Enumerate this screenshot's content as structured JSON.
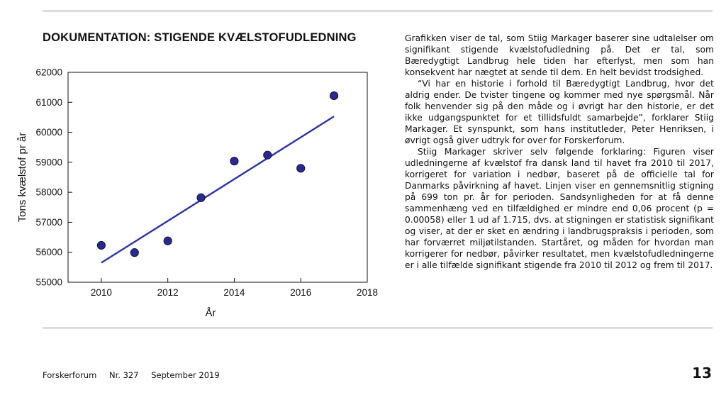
{
  "heading": "DOKUMENTATION: STIGENDE KVÆLSTOFUDLEDNING",
  "article": {
    "paragraphs": [
      "Grafikken viser de tal, som Stiig Markager baserer sine udtalelser om signifikant stigende kvælstofudledning på. Det er tal, som Bæredygtigt Landbrug hele tiden har efterlyst, men som han konsekvent har nægtet at sende til dem. En helt bevidst trodsighed.",
      "“Vi har en historie i forhold til Bæredygtigt Landbrug, hvor det aldrig ender. De tvister tingene og kommer med nye spørgsmål. Når folk henvender sig på den måde og i øvrigt har den historie, er det ikke udgangspunktet for et tillidsfuldt samarbejde”, forklarer Stiig Markager. Et synspunkt, som hans institutleder, Peter Henriksen, i øvrigt også giver udtryk for over for Forskerforum.",
      "Stiig Markager skriver selv følgende forklaring: Figuren viser udledningerne af kvælstof fra dansk land til havet fra 2010 til 2017, korrigeret for variation i nedbør, baseret på de officielle tal for Danmarks påvirkning af havet. Linjen viser en gennemsnitlig stigning på 699 ton pr. år for perioden. Sandsynligheden for at få denne sammenhæng ved en tilfældighed er mindre end 0,06 procent (p = 0.00058) eller 1 ud af 1.715, dvs. at stigningen er statistisk signifikant og viser, at der er sket en ændring i landbrugspraksis i perioden, som har forværret miljøtilstanden. Startåret, og måden for hvordan man korrigerer for nedbør, påvirker resultatet, men kvælstofudledningerne er i alle tilfælde signifikant stigende fra 2010 til 2012 og frem til 2017."
    ]
  },
  "footer": {
    "publication": "Forskerforum",
    "issue": "Nr. 327",
    "date": "September 2019",
    "page": "13"
  },
  "chart_data": {
    "type": "scatter",
    "x": [
      2010,
      2011,
      2012,
      2013,
      2014,
      2015,
      2016,
      2017
    ],
    "y": [
      56230,
      55990,
      56380,
      57820,
      59040,
      59240,
      58800,
      61220
    ],
    "trendline": {
      "x": [
        2010,
        2017
      ],
      "y": [
        55650,
        60530
      ]
    },
    "xlabel": "År",
    "ylabel": "Tons kvælstof pr år",
    "xlim": [
      2009,
      2018
    ],
    "ylim": [
      55000,
      62000
    ],
    "xticks": [
      2010,
      2012,
      2014,
      2016,
      2018
    ],
    "yticks": [
      55000,
      56000,
      57000,
      58000,
      59000,
      60000,
      61000,
      62000
    ],
    "grid": false,
    "colors": {
      "marker": "#2a2a8e",
      "marker_stroke": "#101050",
      "line": "#2a33a8"
    }
  }
}
